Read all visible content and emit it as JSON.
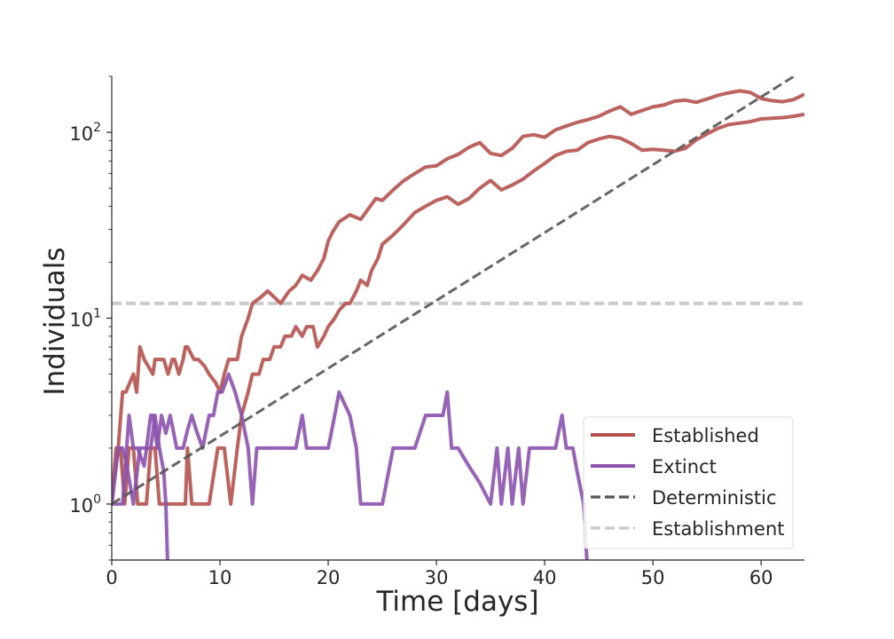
{
  "chart_data": {
    "type": "line",
    "title": "",
    "xlabel": "Time [days]",
    "ylabel": "Individuals",
    "xlim": [
      0,
      64
    ],
    "ylim": [
      0.5,
      200
    ],
    "yscale": "log",
    "grid": false,
    "legend_placement": "bottom-right",
    "x_ticks": [
      0,
      10,
      20,
      30,
      40,
      50,
      60
    ],
    "x_tick_labels": [
      "0",
      "10",
      "20",
      "30",
      "40",
      "50",
      "60"
    ],
    "y_major_ticks": [
      1,
      10,
      100
    ],
    "y_tick_labels": [
      {
        "base": "10",
        "exp": "0"
      },
      {
        "base": "10",
        "exp": "1"
      },
      {
        "base": "10",
        "exp": "2"
      }
    ],
    "legend": [
      {
        "label": "Established",
        "color": "#b5514e",
        "style": "solid"
      },
      {
        "label": "Extinct",
        "color": "#8c52ae",
        "style": "solid"
      },
      {
        "label": "Deterministic",
        "color": "#555555",
        "style": "dashed"
      },
      {
        "label": "Establishment",
        "color": "#c8c8c8",
        "style": "dashed"
      }
    ],
    "series": [
      {
        "name": "Established",
        "color": "#b5514e",
        "x": [
          0,
          0.6,
          1.0,
          1.3,
          2.0,
          2.3,
          2.6,
          3.0,
          3.8,
          4.0,
          4.2,
          4.8,
          5.2,
          5.6,
          5.8,
          6.2,
          6.6,
          6.8,
          7.0,
          7.6,
          8.0,
          8.6,
          9.0,
          9.6,
          10.0,
          10.4,
          10.8,
          11.0,
          11.6,
          12.0,
          12.6,
          13.0,
          13.8,
          14.4,
          15.0,
          15.6,
          16.4,
          17.0,
          17.6,
          18.4,
          19.0,
          19.6,
          20.0,
          20.4,
          21.0,
          22.0,
          23.0,
          23.6,
          24.4,
          25.0,
          26.0,
          27.0,
          28.0,
          29.0,
          30.0,
          31.0,
          32.0,
          33.0,
          34.0,
          35.0,
          36.0,
          37.0,
          38.0,
          39.0,
          40.0,
          41.0,
          42.0,
          43.0,
          44.0,
          45.0,
          46.0,
          47.0,
          48.0,
          49.0,
          50.0,
          51.0,
          52.0,
          53.0,
          54.0,
          55.0,
          56.0,
          57.0,
          58.0,
          59.0,
          60.0,
          61.0,
          62.0,
          63.0,
          64.0
        ],
        "values": [
          1,
          2,
          4,
          4,
          5,
          4,
          7,
          6,
          5,
          6,
          6,
          6,
          5,
          6,
          6,
          5,
          6,
          7,
          7,
          6,
          6,
          5.5,
          5,
          4.5,
          4,
          5,
          6,
          6,
          6,
          8,
          10,
          12,
          13,
          14,
          13,
          12,
          14,
          15,
          17,
          16,
          18,
          21,
          26,
          29,
          33,
          36,
          34,
          38,
          44,
          43,
          49,
          55,
          60,
          65,
          66,
          72,
          76,
          83,
          88,
          77,
          75,
          82,
          95,
          97,
          94,
          103,
          108,
          113,
          117,
          122,
          130,
          137,
          125,
          131,
          137,
          140,
          147,
          149,
          145,
          151,
          158,
          163,
          167,
          164,
          152,
          148,
          146,
          150,
          160
        ]
      },
      {
        "name": "Established",
        "color": "#b5514e",
        "x": [
          0,
          0.4,
          0.8,
          1.2,
          1.6,
          2.0,
          2.4,
          2.8,
          3.2,
          3.6,
          4.0,
          4.4,
          5.0,
          5.6,
          6.0,
          6.6,
          6.8,
          7.0,
          7.4,
          8.0,
          9.0,
          9.8,
          10.4,
          11.0,
          11.6,
          12.0,
          12.6,
          13.0,
          13.6,
          14.0,
          14.6,
          15.0,
          15.6,
          16.0,
          16.6,
          17.0,
          17.6,
          18.0,
          18.6,
          19.0,
          19.6,
          20.0,
          20.6,
          21.0,
          21.6,
          22.0,
          22.6,
          23.0,
          23.6,
          24.0,
          24.6,
          25.0,
          26.0,
          27.0,
          28.0,
          29.0,
          30.0,
          31.0,
          32.0,
          33.0,
          34.0,
          35.0,
          36.0,
          37.0,
          38.0,
          39.0,
          40.0,
          41.0,
          42.0,
          43.0,
          44.0,
          45.0,
          46.0,
          47.0,
          48.0,
          49.0,
          50.0,
          51.0,
          52.0,
          53.0,
          54.0,
          55.0,
          56.0,
          57.0,
          58.0,
          59.0,
          60.0,
          61.0,
          62.0,
          63.0,
          64.0
        ],
        "values": [
          1,
          2,
          2,
          1,
          2,
          2,
          1,
          1,
          1,
          2,
          2,
          1,
          1,
          1,
          1,
          1,
          1,
          2,
          1,
          1,
          1,
          2,
          2,
          1,
          2,
          3,
          4,
          5,
          5,
          6,
          6,
          7,
          7,
          8,
          8,
          9,
          8,
          9,
          9,
          7,
          8,
          9,
          10,
          11,
          12,
          12,
          14,
          16,
          15,
          18,
          21,
          25,
          28,
          32,
          37,
          40,
          43,
          45,
          41,
          44,
          50,
          55,
          49,
          52,
          56,
          62,
          68,
          75,
          79,
          80,
          88,
          92,
          95,
          93,
          87,
          80,
          81,
          80,
          79,
          82,
          91,
          98,
          105,
          110,
          112,
          114,
          118,
          119,
          120,
          122,
          125
        ]
      },
      {
        "name": "Extinct",
        "color": "#8c52ae",
        "x": [
          0,
          1.0,
          1.6,
          2.0,
          2.4,
          3.0,
          3.6,
          3.8,
          4.2,
          4.6,
          5.0,
          5.4,
          6.0,
          6.6,
          7.0,
          7.4,
          7.8,
          8.4,
          9.0,
          9.4,
          9.8,
          10.2,
          10.8,
          11.4,
          12.0,
          12.6,
          13.0,
          13.4,
          14.0,
          15.0,
          16.0,
          17.0,
          17.6,
          18.0,
          19.0,
          20.0,
          20.6,
          21.0,
          22.0,
          22.6,
          23.0,
          23.6,
          24.0,
          25.0,
          26.0,
          26.6,
          27.0,
          28.0,
          29.0,
          30.0,
          30.6,
          31.0,
          31.4,
          32.0,
          33.0,
          34.0,
          35.0,
          35.6,
          36.0,
          36.6,
          37.0,
          37.6,
          38.0,
          38.6,
          39.0,
          40.0,
          41.0,
          41.6,
          42.0,
          42.6,
          43.0,
          43.6,
          44.0
        ],
        "values": [
          1,
          1,
          3,
          2,
          2,
          1.6,
          3,
          3,
          2,
          3,
          2.4,
          3,
          2,
          2,
          2.5,
          3,
          2.5,
          2,
          3,
          3,
          4,
          4,
          5,
          4,
          3,
          2,
          1,
          2,
          2,
          2,
          2,
          2,
          3,
          2,
          2,
          2,
          3,
          4,
          3,
          2,
          1,
          1,
          1,
          1,
          2,
          2,
          2,
          2,
          3,
          3,
          3,
          4,
          2,
          2,
          1.6,
          1.3,
          1,
          2,
          1,
          2,
          1,
          2,
          1,
          2,
          2,
          2,
          2,
          3,
          2,
          2,
          1.5,
          1,
          0.4
        ]
      },
      {
        "name": "Extinct",
        "color": "#8c52ae",
        "x": [
          0,
          0.6,
          1.0,
          1.4,
          2.0,
          2.6,
          3.0,
          3.6,
          4.0,
          4.4,
          4.8,
          5.0,
          5.2
        ],
        "values": [
          1,
          2,
          2,
          1.6,
          1,
          2,
          2,
          2,
          3,
          2,
          1.5,
          1,
          0.4
        ]
      },
      {
        "name": "Deterministic",
        "color": "#555555",
        "x": [
          0,
          64
        ],
        "values": [
          1,
          217
        ]
      },
      {
        "name": "Establishment",
        "color": "#c8c8c8",
        "x": [
          0,
          64
        ],
        "values": [
          12,
          12
        ]
      }
    ]
  }
}
